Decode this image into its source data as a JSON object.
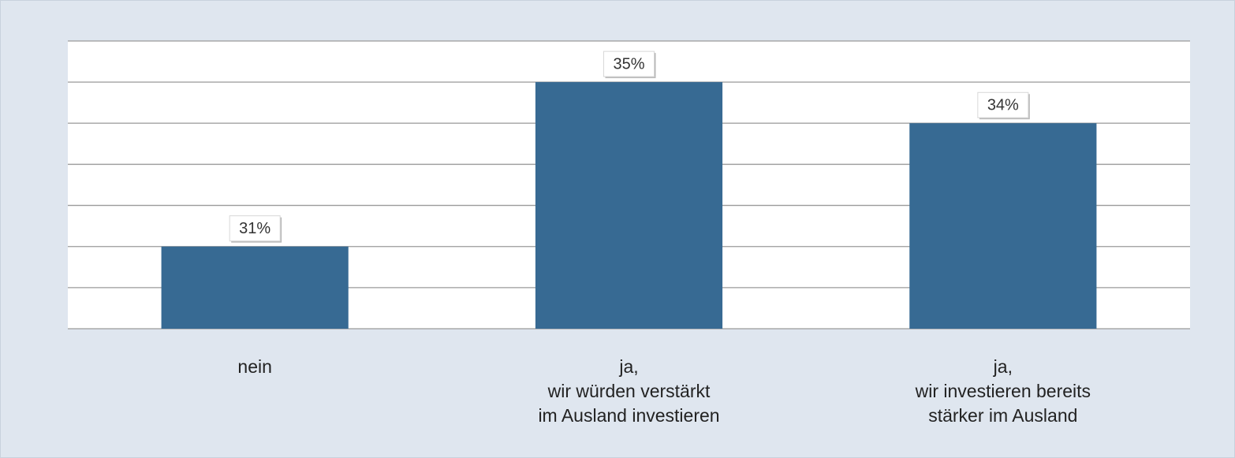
{
  "chart_data": {
    "type": "bar",
    "categories": [
      "nein",
      "ja,\nwir würden verstärkt\nim Ausland investieren",
      "ja,\nwir investieren bereits\nstärker im Ausland"
    ],
    "values": [
      31,
      35,
      34
    ],
    "value_labels": [
      "31%",
      "35%",
      "34%"
    ],
    "color": "#376a93",
    "ylim": [
      29,
      36
    ],
    "yticks": [
      29,
      30,
      31,
      32,
      33,
      34,
      35,
      36
    ],
    "grid": true
  }
}
